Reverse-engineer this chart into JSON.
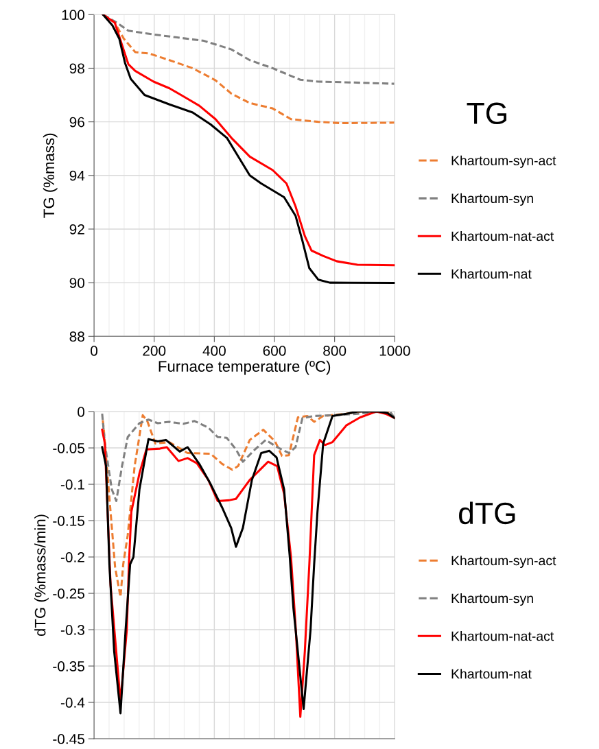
{
  "chart_data": [
    {
      "type": "line",
      "ylabel": "TG (%mass)",
      "xlabel": "Furnace temperature (ºC)",
      "legend_title": "TG",
      "legend": "right",
      "grid": true,
      "xlim": [
        0,
        1000
      ],
      "xticks": [
        0,
        200,
        400,
        600,
        800,
        1000
      ],
      "ylim": [
        88,
        100
      ],
      "yticks": [
        88,
        90,
        92,
        94,
        96,
        98,
        100
      ],
      "series": [
        {
          "name": "Khartoum-syn-act",
          "color": "#ed7d31",
          "line_style": "dashed",
          "x": [
            30,
            69,
            99,
            137,
            183,
            251,
            328,
            404,
            457,
            518,
            594,
            655,
            746,
            823,
            998
          ],
          "values": [
            100,
            99.7,
            99.1,
            98.6,
            98.55,
            98.3,
            98.0,
            97.55,
            97.05,
            96.7,
            96.5,
            96.1,
            96.0,
            95.95,
            95.97
          ]
        },
        {
          "name": "Khartoum-syn",
          "color": "#808080",
          "line_style": "dashed",
          "x": [
            30,
            76,
            114,
            198,
            289,
            366,
            457,
            518,
            594,
            686,
            746,
            823,
            998
          ],
          "values": [
            100,
            99.7,
            99.4,
            99.26,
            99.13,
            99.02,
            98.7,
            98.3,
            98.0,
            97.57,
            97.5,
            97.48,
            97.42
          ]
        },
        {
          "name": "Khartoum-nat-act",
          "color": "#ff0000",
          "line_style": "solid",
          "x": [
            30,
            69,
            95,
            114,
            137,
            198,
            251,
            305,
            350,
            404,
            457,
            518,
            594,
            640,
            670,
            701,
            723,
            762,
            807,
            876,
            998
          ],
          "values": [
            100,
            99.7,
            98.8,
            98.15,
            97.9,
            97.5,
            97.25,
            96.9,
            96.6,
            96.1,
            95.4,
            94.7,
            94.2,
            93.7,
            92.85,
            91.74,
            91.2,
            91.0,
            90.8,
            90.67,
            90.65
          ]
        },
        {
          "name": "Khartoum-nat",
          "color": "#000000",
          "line_style": "solid",
          "x": [
            30,
            61,
            84,
            103,
            122,
            168,
            251,
            328,
            388,
            442,
            480,
            518,
            556,
            632,
            670,
            693,
            716,
            746,
            784,
            998
          ],
          "values": [
            100,
            99.6,
            99.1,
            98.2,
            97.6,
            97.0,
            96.65,
            96.35,
            95.9,
            95.4,
            94.7,
            94.0,
            93.7,
            93.19,
            92.5,
            91.56,
            90.54,
            90.11,
            90.0,
            89.99
          ]
        }
      ]
    },
    {
      "type": "line",
      "ylabel": "dTG (%mass/min)",
      "legend_title": "dTG",
      "legend": "right",
      "grid": true,
      "tick_labels": "y",
      "xlim": [
        0,
        1000
      ],
      "xticks": [
        0,
        200,
        400,
        600,
        800,
        1000
      ],
      "ylim": [
        -0.45,
        0
      ],
      "yticks": [
        -0.45,
        -0.4,
        -0.35,
        -0.3,
        -0.25,
        -0.2,
        -0.15,
        -0.1,
        -0.05,
        0
      ],
      "series": [
        {
          "name": "Khartoum-syn-act",
          "color": "#ed7d31",
          "line_style": "dashed",
          "x": [
            29,
            32,
            70,
            88,
            97,
            112,
            135,
            162,
            177,
            204,
            250,
            311,
            388,
            426,
            460,
            479,
            518,
            563,
            602,
            625,
            648,
            678,
            709,
            732,
            762,
            839,
            885,
            938,
            976,
            1000
          ],
          "values": [
            -0.012,
            -0.022,
            -0.214,
            -0.255,
            -0.21,
            -0.17,
            -0.075,
            -0.005,
            -0.013,
            -0.044,
            -0.042,
            -0.057,
            -0.058,
            -0.072,
            -0.08,
            -0.075,
            -0.039,
            -0.025,
            -0.041,
            -0.061,
            -0.06,
            -0.008,
            -0.006,
            -0.014,
            -0.006,
            -0.003,
            0,
            0,
            0,
            -0.009
          ]
        },
        {
          "name": "Khartoum-syn",
          "color": "#808080",
          "line_style": "dashed",
          "x": [
            27,
            36,
            59,
            74,
            93,
            112,
            151,
            181,
            212,
            250,
            296,
            334,
            380,
            411,
            441,
            472,
            495,
            533,
            571,
            609,
            648,
            670,
            693,
            732,
            800,
            877,
            953,
            984,
            1000
          ],
          "values": [
            -0.003,
            -0.044,
            -0.107,
            -0.123,
            -0.075,
            -0.035,
            -0.016,
            -0.011,
            -0.016,
            -0.014,
            -0.017,
            -0.013,
            -0.022,
            -0.035,
            -0.036,
            -0.052,
            -0.069,
            -0.053,
            -0.039,
            -0.049,
            -0.057,
            -0.049,
            -0.009,
            -0.006,
            -0.005,
            -0.003,
            0,
            0,
            -0.009
          ]
        },
        {
          "name": "Khartoum-nat-act",
          "color": "#ff0000",
          "line_style": "solid",
          "x": [
            27,
            36,
            55,
            88,
            109,
            116,
            124,
            151,
            174,
            219,
            242,
            281,
            311,
            342,
            380,
            411,
            449,
            472,
            518,
            579,
            609,
            632,
            655,
            671,
            686,
            701,
            716,
            732,
            751,
            768,
            793,
            839,
            885,
            938,
            969,
            1000
          ],
          "values": [
            -0.025,
            -0.044,
            -0.239,
            -0.399,
            -0.3,
            -0.21,
            -0.138,
            -0.085,
            -0.052,
            -0.051,
            -0.049,
            -0.068,
            -0.064,
            -0.071,
            -0.094,
            -0.123,
            -0.122,
            -0.12,
            -0.094,
            -0.069,
            -0.075,
            -0.113,
            -0.2,
            -0.3,
            -0.42,
            -0.33,
            -0.21,
            -0.06,
            -0.039,
            -0.046,
            -0.042,
            -0.019,
            -0.008,
            0,
            -0.003,
            -0.009
          ]
        },
        {
          "name": "Khartoum-nat",
          "color": "#000000",
          "line_style": "solid",
          "x": [
            27,
            40,
            51,
            67,
            88,
            105,
            120,
            131,
            151,
            181,
            212,
            239,
            285,
            311,
            350,
            388,
            426,
            456,
            472,
            495,
            525,
            556,
            583,
            607,
            632,
            651,
            663,
            697,
            720,
            732,
            743,
            762,
            793,
            839,
            877,
            923,
            946,
            976,
            1000
          ],
          "values": [
            -0.049,
            -0.075,
            -0.21,
            -0.33,
            -0.415,
            -0.3,
            -0.21,
            -0.2,
            -0.107,
            -0.038,
            -0.041,
            -0.039,
            -0.055,
            -0.049,
            -0.072,
            -0.1,
            -0.132,
            -0.16,
            -0.186,
            -0.16,
            -0.094,
            -0.057,
            -0.054,
            -0.063,
            -0.107,
            -0.2,
            -0.27,
            -0.409,
            -0.3,
            -0.21,
            -0.138,
            -0.044,
            -0.006,
            -0.003,
            0,
            0,
            0,
            -0.002,
            -0.009
          ]
        }
      ]
    }
  ]
}
